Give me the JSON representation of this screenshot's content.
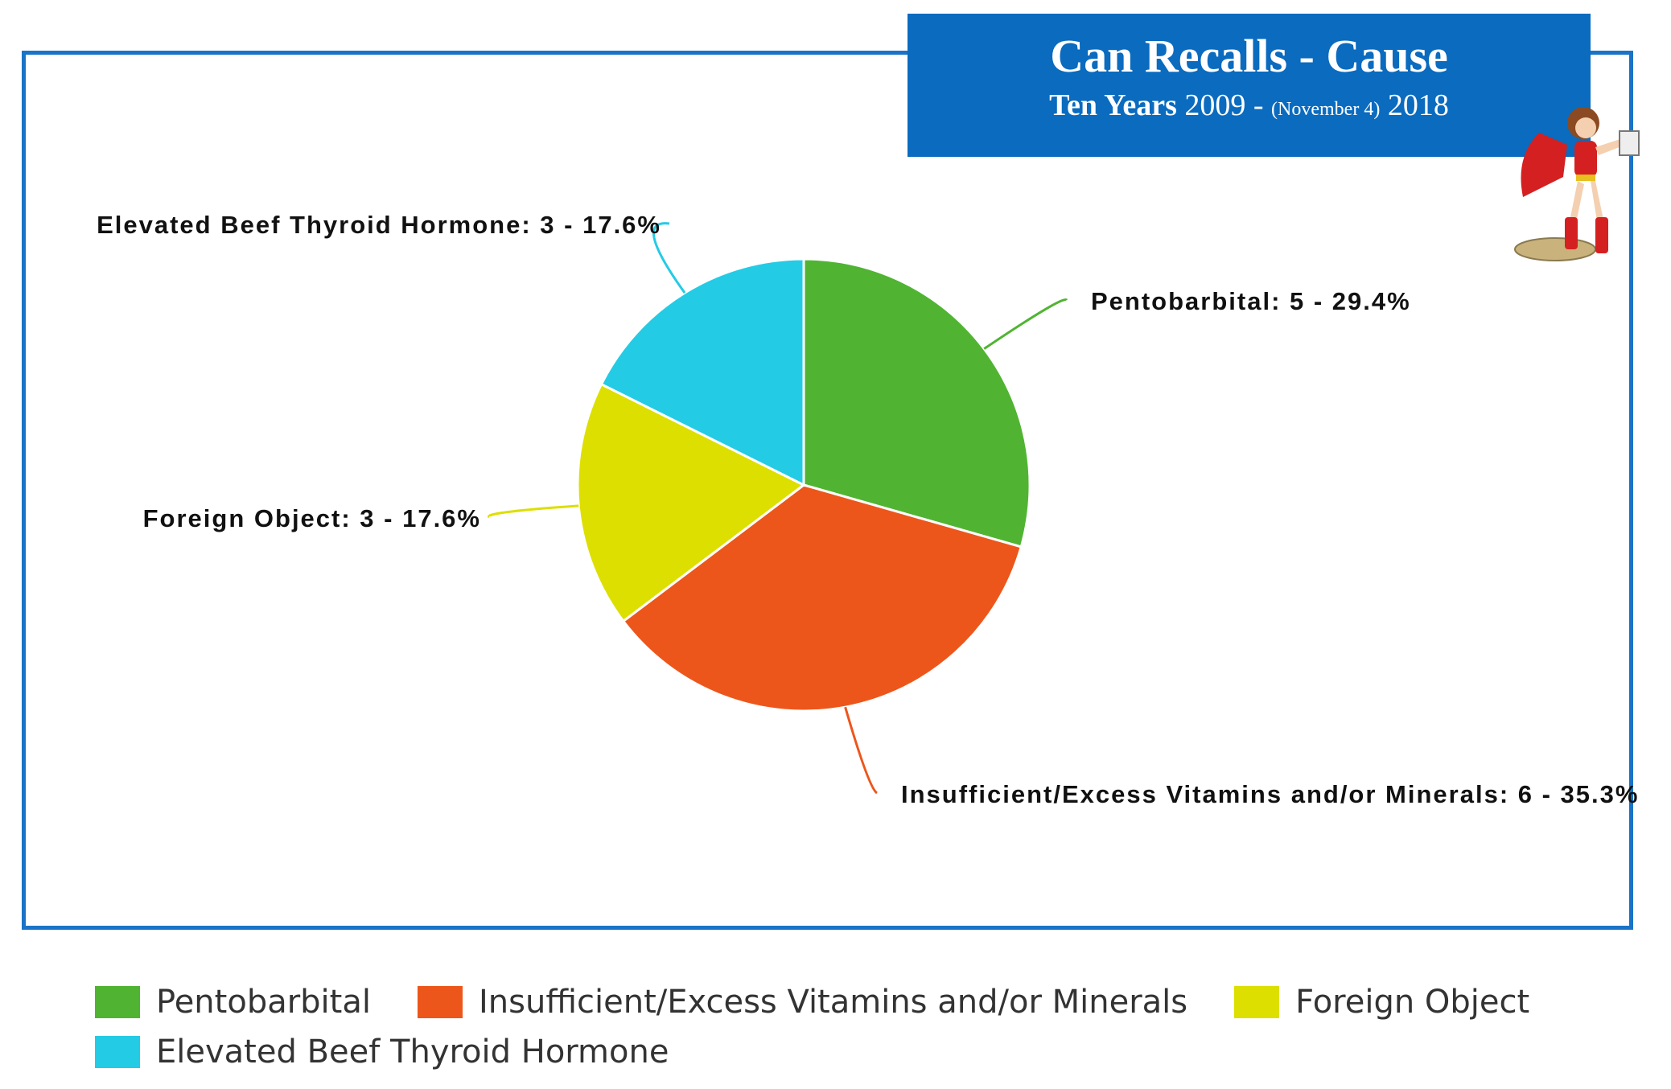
{
  "header": {
    "title": "Can Recalls - Cause",
    "subtitle_bold": "Ten Years",
    "subtitle_start": "2009 -",
    "subtitle_small": "(November 4)",
    "subtitle_end": "2018"
  },
  "colors": {
    "frame": "#1a73c6",
    "title_bg": "#0a6bbf"
  },
  "chart_data": {
    "type": "pie",
    "title": "Can Recalls - Cause",
    "legend_position": "bottom",
    "slices": [
      {
        "name": "Pentobarbital",
        "value": 5,
        "percent": 29.4,
        "color": "#50b432",
        "label": "Pentobarbital: 5 - 29.4%"
      },
      {
        "name": "Insufficient/Excess Vitamins and/or Minerals",
        "value": 6,
        "percent": 35.3,
        "color": "#ed561b",
        "label": "Insufficient/Excess Vitamins and/or Minerals: 6 - 35.3%"
      },
      {
        "name": "Foreign Object",
        "value": 3,
        "percent": 17.6,
        "color": "#dddf00",
        "label": "Foreign Object: 3 - 17.6%"
      },
      {
        "name": "Elevated Beef Thyroid Hormone",
        "value": 3,
        "percent": 17.6,
        "color": "#24cbe5",
        "label": "Elevated Beef Thyroid Hormone: 3 - 17.6%"
      }
    ]
  },
  "legend": {
    "items": [
      {
        "label": "Pentobarbital",
        "color": "#50b432"
      },
      {
        "label": "Insufficient/Excess Vitamins and/or Minerals",
        "color": "#ed561b"
      },
      {
        "label": "Foreign Object",
        "color": "#dddf00"
      },
      {
        "label": "Elevated Beef Thyroid Hormone",
        "color": "#24cbe5"
      }
    ]
  },
  "mascot": {
    "icon": "superhero-mascot-icon"
  }
}
